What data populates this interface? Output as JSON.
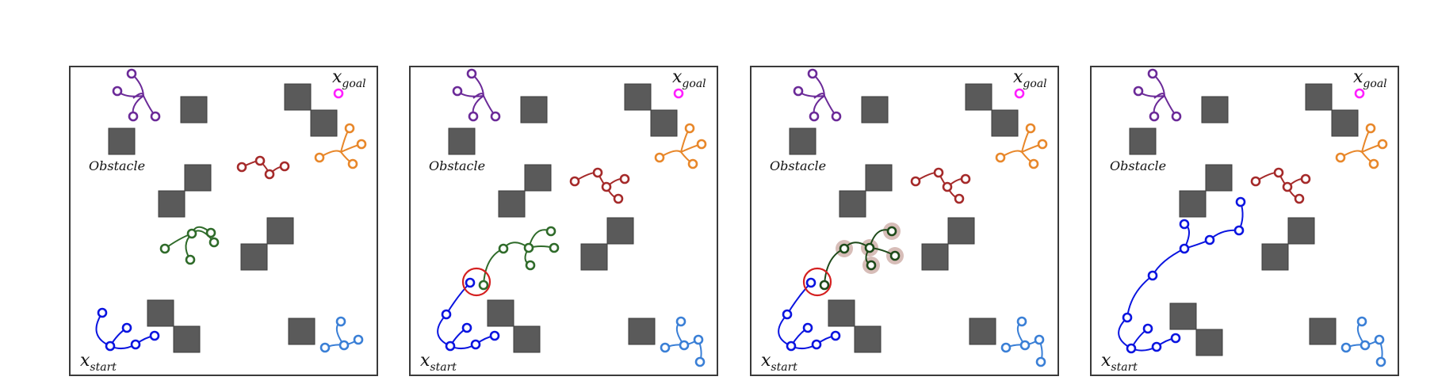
{
  "labels": {
    "goal_main": "x",
    "goal_sub": "goal",
    "start_main": "x",
    "start_sub": "start",
    "obstacle": "Obstacle"
  },
  "panels": [
    {
      "name": "panel-1",
      "state": "separate-trees"
    },
    {
      "name": "panel-2",
      "state": "trees-connect"
    },
    {
      "name": "panel-3",
      "state": "trees-connect-highlighted"
    },
    {
      "name": "panel-4",
      "state": "trees-merged"
    }
  ],
  "colors": {
    "start_tree": "#0a14e0",
    "light_blue_tree": "#3a7fd6",
    "purple_tree": "#6b2a98",
    "red_tree": "#a52a2a",
    "orange_tree": "#e8872a",
    "green_tree": "#2f6b2a",
    "dark_tree": "#1e4a1a",
    "goal": "#ff1fff",
    "obstacle": "#5a5a5a",
    "connect_circle": "#d42020",
    "highlight_halo": "#c9a7a0"
  }
}
